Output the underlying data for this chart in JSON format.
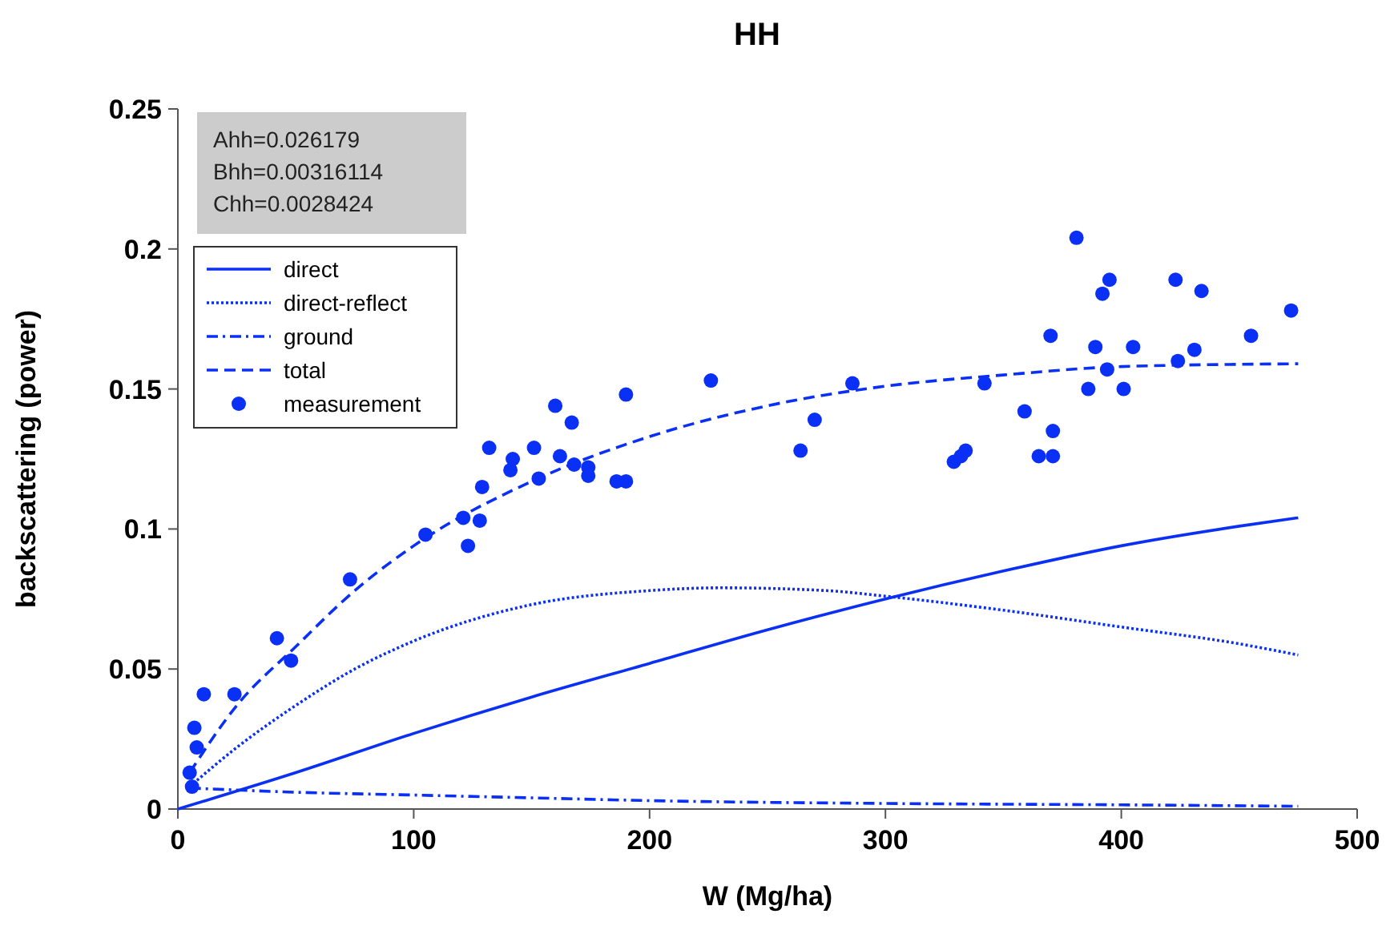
{
  "chart_data": {
    "type": "line",
    "title": "HH",
    "xlabel": "W (Mg/ha)",
    "ylabel": "backscattering (power)",
    "annotations": [
      "Ahh=0.026179",
      "Bhh=0.00316114",
      "Chh=0.0028424"
    ],
    "xlim": [
      0,
      500
    ],
    "xticks": [
      0,
      100,
      200,
      300,
      400,
      500
    ],
    "ylim": [
      0,
      0.25
    ],
    "yticks": [
      0,
      0.05,
      0.1,
      0.15,
      0.2,
      0.25
    ],
    "grid": false,
    "legend": "top left",
    "series": [
      {
        "name": "direct",
        "color": "#0a2ff5",
        "line_style": "solid",
        "marker": "none",
        "x": [
          0,
          50,
          100,
          150,
          200,
          250,
          300,
          350,
          400,
          450,
          475
        ],
        "values": [
          0,
          0.013,
          0.027,
          0.04,
          0.052,
          0.064,
          0.075,
          0.085,
          0.094,
          0.101,
          0.104
        ]
      },
      {
        "name": "direct-reflect",
        "color": "#0a2ff5",
        "line_style": "dotted",
        "marker": "none",
        "x": [
          5,
          25,
          50,
          75,
          100,
          150,
          200,
          230,
          275,
          300,
          350,
          400,
          450,
          475
        ],
        "values": [
          0.008,
          0.022,
          0.037,
          0.05,
          0.06,
          0.073,
          0.078,
          0.079,
          0.078,
          0.076,
          0.071,
          0.065,
          0.059,
          0.055
        ]
      },
      {
        "name": "ground",
        "color": "#0a2ff5",
        "line_style": "dashdot",
        "marker": "none",
        "x": [
          5,
          50,
          100,
          150,
          200,
          300,
          400,
          475
        ],
        "values": [
          0.0075,
          0.006,
          0.005,
          0.004,
          0.003,
          0.002,
          0.0015,
          0.001
        ]
      },
      {
        "name": "total",
        "color": "#0a2ff5",
        "line_style": "dashed",
        "marker": "none",
        "x": [
          5,
          25,
          50,
          75,
          100,
          150,
          200,
          250,
          300,
          350,
          400,
          475
        ],
        "values": [
          0.013,
          0.037,
          0.058,
          0.078,
          0.094,
          0.117,
          0.133,
          0.144,
          0.151,
          0.155,
          0.158,
          0.159
        ]
      },
      {
        "name": "measurement",
        "color": "#0a2ff5",
        "type": "scatter",
        "marker": "circle",
        "x": [
          5,
          6,
          7,
          8,
          11,
          24,
          42,
          48,
          73,
          105,
          121,
          123,
          128,
          129,
          132,
          141,
          142,
          151,
          153,
          160,
          162,
          167,
          168,
          174,
          174,
          186,
          190,
          190,
          226,
          264,
          270,
          286,
          329,
          332,
          334,
          342,
          359,
          365,
          371,
          371,
          370,
          381,
          386,
          389,
          392,
          395,
          394,
          401,
          405,
          423,
          424,
          431,
          434,
          455,
          472
        ],
        "values": [
          0.013,
          0.008,
          0.029,
          0.022,
          0.041,
          0.041,
          0.061,
          0.053,
          0.082,
          0.098,
          0.104,
          0.094,
          0.103,
          0.115,
          0.129,
          0.121,
          0.125,
          0.129,
          0.118,
          0.144,
          0.126,
          0.138,
          0.123,
          0.122,
          0.119,
          0.117,
          0.117,
          0.148,
          0.153,
          0.128,
          0.139,
          0.152,
          0.124,
          0.126,
          0.128,
          0.152,
          0.142,
          0.126,
          0.126,
          0.135,
          0.169,
          0.204,
          0.15,
          0.165,
          0.184,
          0.189,
          0.157,
          0.15,
          0.165,
          0.189,
          0.16,
          0.164,
          0.185,
          0.169,
          0.178
        ]
      }
    ]
  }
}
